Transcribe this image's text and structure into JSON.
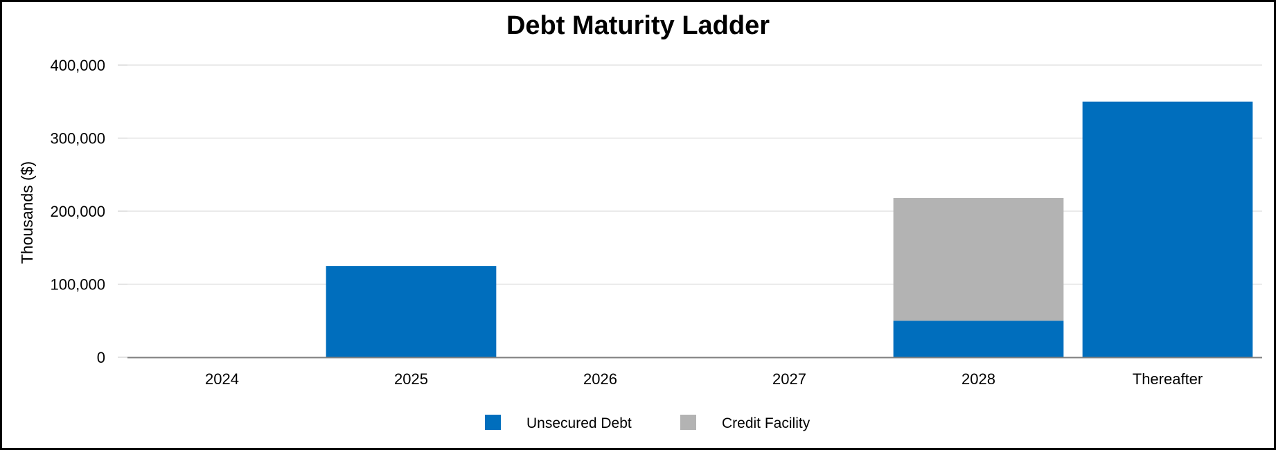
{
  "chart_data": {
    "type": "bar",
    "stacked": true,
    "title": "Debt Maturity Ladder",
    "xlabel": "",
    "ylabel": "Thousands ($)",
    "categories": [
      "2024",
      "2025",
      "2026",
      "2027",
      "2028",
      "Thereafter"
    ],
    "series": [
      {
        "name": "Unsecured Debt",
        "color": "#006ebd",
        "values": [
          0,
          125000,
          0,
          0,
          50000,
          350000
        ]
      },
      {
        "name": "Credit Facility",
        "color": "#b3b3b3",
        "values": [
          0,
          0,
          0,
          0,
          168000,
          0
        ]
      }
    ],
    "ylim": [
      0,
      400000
    ],
    "yticks": [
      0,
      100000,
      200000,
      300000,
      400000
    ],
    "ytick_labels": [
      "0",
      "100,000",
      "200,000",
      "300,000",
      "400,000"
    ],
    "grid": true,
    "legend_position": "bottom-center"
  }
}
